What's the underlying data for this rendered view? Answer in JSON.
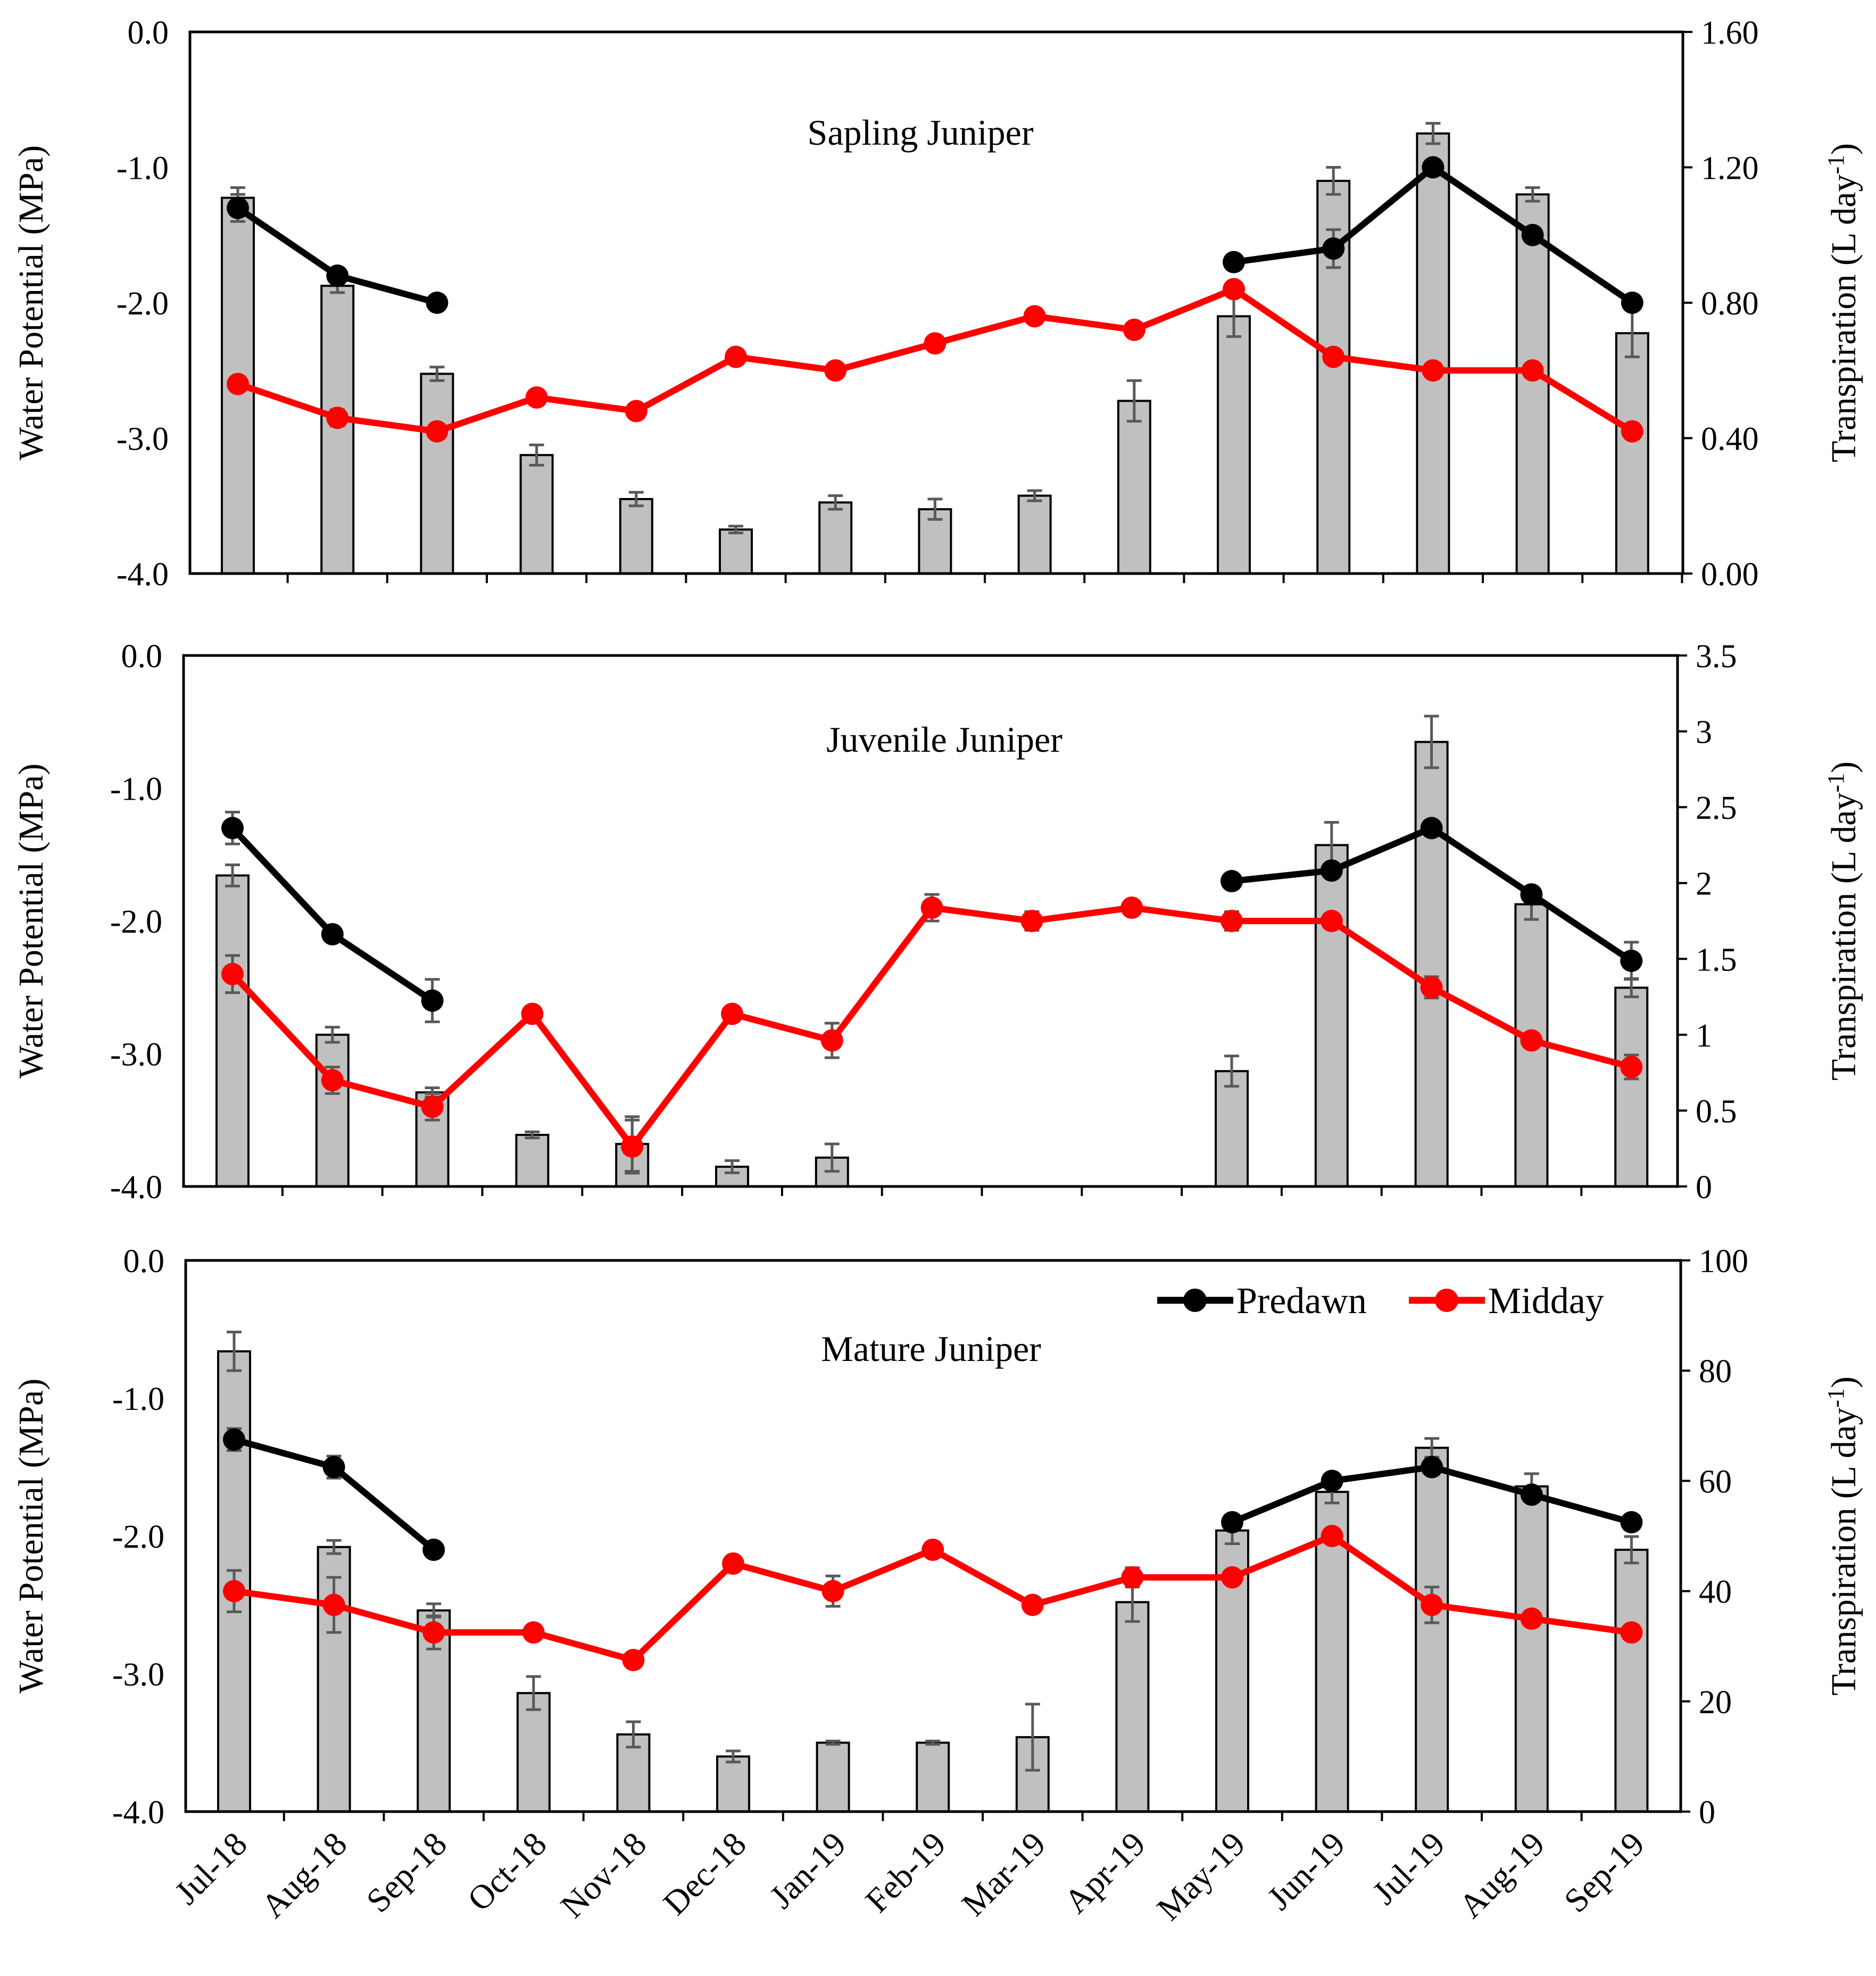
{
  "figure": {
    "months": [
      "Jul-18",
      "Aug-18",
      "Sep-18",
      "Oct-18",
      "Nov-18",
      "Dec-18",
      "Jan-19",
      "Feb-19",
      "Mar-19",
      "Apr-19",
      "May-19",
      "Jun-19",
      "Jul-19",
      "Aug-19",
      "Sep-19"
    ],
    "left_axis_title": "Water Potential (MPa)",
    "right_axis_title": "Transpiration (L day",
    "right_axis_superscript": "-1",
    "right_axis_close": ")",
    "legend": {
      "predawn_label": "Predawn",
      "midday_label": "Midday"
    },
    "colors": {
      "predawn": "#000000",
      "midday": "#ff0000",
      "bar_fill": "#c0c0c0",
      "bar_stroke": "#000000",
      "error_bar": "#595959"
    }
  },
  "chart_data": [
    {
      "type": "bar+line",
      "title": "Sapling Juniper",
      "categories": [
        "Jul-18",
        "Aug-18",
        "Sep-18",
        "Oct-18",
        "Nov-18",
        "Dec-18",
        "Jan-19",
        "Feb-19",
        "Mar-19",
        "Apr-19",
        "May-19",
        "Jun-19",
        "Jul-19",
        "Aug-19",
        "Sep-19"
      ],
      "left_axis": {
        "label": "Water Potential (MPa)",
        "range": [
          -4.0,
          0.0
        ],
        "ticks": [
          "0.0",
          "-1.0",
          "-2.0",
          "-3.0",
          "-4.0"
        ]
      },
      "right_axis": {
        "label": "Transpiration (L day-1)",
        "range": [
          0,
          1.6
        ],
        "ticks": [
          "1.60",
          "1.20",
          "0.80",
          "0.40",
          "0.00"
        ]
      },
      "bars": {
        "name": "Transpiration",
        "values": [
          1.11,
          0.85,
          0.59,
          0.35,
          0.22,
          0.13,
          0.21,
          0.19,
          0.23,
          0.51,
          0.76,
          1.16,
          1.3,
          1.12,
          0.71
        ],
        "errors": [
          0.03,
          0.02,
          0.02,
          0.03,
          0.02,
          0.01,
          0.02,
          0.03,
          0.015,
          0.06,
          0.06,
          0.04,
          0.03,
          0.02,
          0.07
        ]
      },
      "series": [
        {
          "name": "Predawn",
          "values": [
            -1.3,
            -1.8,
            -2.0,
            null,
            null,
            null,
            null,
            null,
            null,
            null,
            -1.7,
            -1.6,
            -1.0,
            -1.5,
            -2.0
          ],
          "errors": [
            0.1,
            0.04,
            0.03,
            null,
            null,
            null,
            null,
            null,
            null,
            null,
            0.02,
            0.14,
            0.02,
            0.04,
            0.02
          ]
        },
        {
          "name": "Midday",
          "values": [
            -2.6,
            -2.85,
            -2.95,
            -2.7,
            -2.8,
            -2.4,
            -2.5,
            -2.3,
            -2.1,
            -2.2,
            -1.9,
            -2.4,
            -2.5,
            -2.5,
            -2.95
          ],
          "errors": [
            0.02,
            0.06,
            0.02,
            0.05,
            0.04,
            0.03,
            0.03,
            0.05,
            0.02,
            0.03,
            0.04,
            0.03,
            0.02,
            0.02,
            0.02
          ]
        }
      ]
    },
    {
      "type": "bar+line",
      "title": "Juvenile Juniper",
      "categories": [
        "Jul-18",
        "Aug-18",
        "Sep-18",
        "Oct-18",
        "Nov-18",
        "Dec-18",
        "Jan-19",
        "Feb-19",
        "Mar-19",
        "Apr-19",
        "May-19",
        "Jun-19",
        "Jul-19",
        "Aug-19",
        "Sep-19"
      ],
      "left_axis": {
        "label": "Water Potential (MPa)",
        "range": [
          -4.0,
          0.0
        ],
        "ticks": [
          "0.0",
          "-1.0",
          "-2.0",
          "-3.0",
          "-4.0"
        ]
      },
      "right_axis": {
        "label": "Transpiration (L day-1)",
        "range": [
          0,
          3.5
        ],
        "ticks": [
          "3.5",
          "3",
          "2.5",
          "2",
          "1.5",
          "1",
          "0.5",
          "0"
        ]
      },
      "bars": {
        "name": "Transpiration",
        "values": [
          2.05,
          1.0,
          0.62,
          0.34,
          0.28,
          0.13,
          0.19,
          null,
          null,
          null,
          0.76,
          2.25,
          2.93,
          1.86,
          1.31
        ],
        "errors": [
          0.07,
          0.05,
          0.03,
          0.02,
          0.18,
          0.04,
          0.09,
          null,
          null,
          null,
          0.1,
          0.15,
          0.17,
          0.1,
          0.06
        ]
      },
      "series": [
        {
          "name": "Predawn",
          "values": [
            -1.3,
            -2.1,
            -2.6,
            null,
            null,
            null,
            null,
            null,
            null,
            null,
            -1.7,
            -1.62,
            -1.3,
            -1.8,
            -2.3
          ],
          "errors": [
            0.12,
            0.02,
            0.16,
            null,
            null,
            null,
            null,
            null,
            null,
            null,
            0.02,
            0.02,
            0.05,
            0.04,
            0.14
          ]
        },
        {
          "name": "Midday",
          "values": [
            -2.4,
            -3.2,
            -3.4,
            -2.7,
            -3.7,
            -2.7,
            -2.9,
            -1.9,
            -2.0,
            -1.9,
            -2.0,
            -2.0,
            -2.5,
            -2.9,
            -3.1
          ],
          "errors": [
            0.14,
            0.1,
            0.1,
            0.04,
            0.2,
            0.03,
            0.13,
            0.1,
            0.07,
            0.04,
            0.07,
            0.04,
            0.08,
            0.03,
            0.09
          ]
        }
      ]
    },
    {
      "type": "bar+line",
      "title": "Mature Juniper",
      "categories": [
        "Jul-18",
        "Aug-18",
        "Sep-18",
        "Oct-18",
        "Nov-18",
        "Dec-18",
        "Jan-19",
        "Feb-19",
        "Mar-19",
        "Apr-19",
        "May-19",
        "Jun-19",
        "Jul-19",
        "Aug-19",
        "Sep-19"
      ],
      "left_axis": {
        "label": "Water Potential (MPa)",
        "range": [
          -4.0,
          0.0
        ],
        "ticks": [
          "0.0",
          "-1.0",
          "-2.0",
          "-3.0",
          "-4.0"
        ]
      },
      "right_axis": {
        "label": "Transpiration (L day-1)",
        "range": [
          0,
          100
        ],
        "ticks": [
          "100",
          "80",
          "60",
          "40",
          "20",
          "0"
        ]
      },
      "legend_position": "top-right",
      "bars": {
        "name": "Transpiration",
        "values": [
          83.5,
          48,
          36.5,
          21.5,
          14,
          10,
          12.5,
          12.5,
          13.5,
          38,
          51,
          58,
          66,
          59,
          47.5
        ],
        "errors": [
          3.5,
          1.2,
          1.2,
          3.0,
          2.3,
          1.0,
          0.3,
          0.3,
          6.0,
          3.5,
          2.4,
          2.0,
          1.7,
          2.3,
          2.4
        ]
      },
      "series": [
        {
          "name": "Predawn",
          "values": [
            -1.3,
            -1.5,
            -2.1,
            null,
            null,
            null,
            null,
            null,
            null,
            null,
            -1.9,
            -1.6,
            -1.5,
            -1.7,
            -1.9
          ],
          "errors": [
            0.08,
            0.08,
            0.02,
            null,
            null,
            null,
            null,
            null,
            null,
            null,
            0.04,
            0.04,
            0.03,
            0.02,
            0.02
          ]
        },
        {
          "name": "Midday",
          "values": [
            -2.4,
            -2.5,
            -2.7,
            -2.7,
            -2.9,
            -2.2,
            -2.4,
            -2.1,
            -2.5,
            -2.3,
            -2.3,
            -2.0,
            -2.5,
            -2.6,
            -2.7
          ],
          "errors": [
            0.15,
            0.2,
            0.12,
            0.03,
            0.03,
            0.02,
            0.11,
            0.02,
            0.02,
            0.07,
            0.02,
            0.02,
            0.13,
            0.02,
            0.03
          ]
        }
      ]
    }
  ]
}
